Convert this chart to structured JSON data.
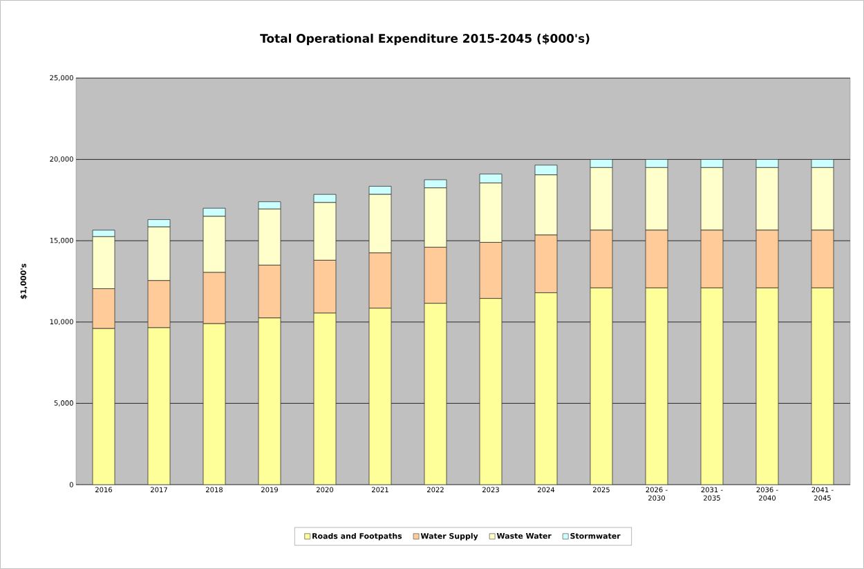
{
  "chart_data": {
    "type": "bar",
    "stacked": true,
    "title": "Total Operational Expenditure 2015-2045 ($000's)",
    "ylabel": "$1,000's",
    "categories": [
      "2016",
      "2017",
      "2018",
      "2019",
      "2020",
      "2021",
      "2022",
      "2023",
      "2024",
      "2025",
      "2026 - 2030",
      "2031 - 2035",
      "2036 - 2040",
      "2041 - 2045"
    ],
    "series": [
      {
        "name": "Roads and Footpaths",
        "color": "#ffff99",
        "values": [
          9600,
          9650,
          9900,
          10250,
          10550,
          10850,
          11150,
          11450,
          11800,
          12100,
          12100,
          12100,
          12100,
          12100
        ]
      },
      {
        "name": "Water Supply",
        "color": "#ffcc99",
        "values": [
          2450,
          2900,
          3150,
          3250,
          3250,
          3400,
          3450,
          3450,
          3550,
          3550,
          3550,
          3550,
          3550,
          3550
        ]
      },
      {
        "name": "Waste Water",
        "color": "#ffffcc",
        "values": [
          3200,
          3300,
          3450,
          3450,
          3550,
          3600,
          3650,
          3650,
          3700,
          3850,
          3850,
          3850,
          3850,
          3850
        ]
      },
      {
        "name": "Stormwater",
        "color": "#ccffff",
        "values": [
          400,
          450,
          500,
          450,
          500,
          500,
          500,
          550,
          600,
          500,
          500,
          500,
          500,
          500
        ]
      }
    ],
    "ylim": [
      0,
      25000
    ],
    "yticks": [
      {
        "value": 0,
        "label": "0"
      },
      {
        "value": 5000,
        "label": "5,000"
      },
      {
        "value": 10000,
        "label": "10,000"
      },
      {
        "value": 15000,
        "label": "15,000"
      },
      {
        "value": 20000,
        "label": "20,000"
      },
      {
        "value": 25000,
        "label": "25,000"
      }
    ],
    "grid": "y",
    "legend": "bottom"
  }
}
